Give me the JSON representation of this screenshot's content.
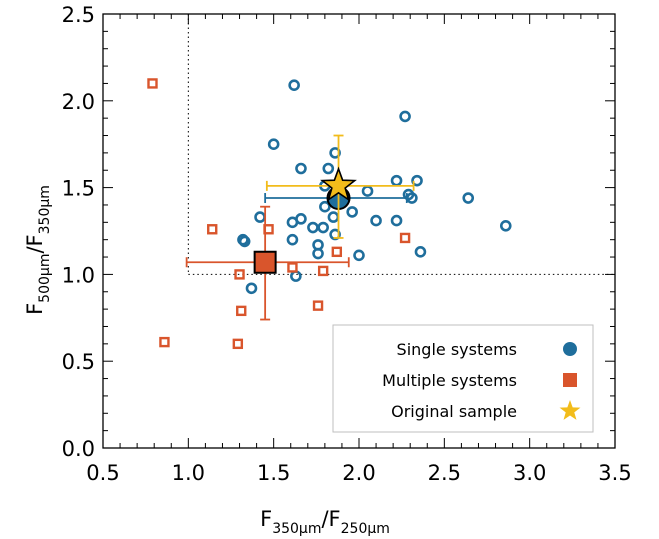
{
  "chart_data": {
    "type": "scatter",
    "xlim": [
      0.5,
      3.5
    ],
    "ylim": [
      0.0,
      2.5
    ],
    "xticks": [
      "0.5",
      "1.0",
      "1.5",
      "2.0",
      "2.5",
      "3.0",
      "3.5"
    ],
    "yticks": [
      "0.0",
      "0.5",
      "1.0",
      "1.5",
      "2.0",
      "2.5"
    ],
    "xlabel": {
      "main1": "F",
      "sub1": "350μm",
      "slash": "/F",
      "sub2": "250μm"
    },
    "ylabel": {
      "main1": "F",
      "sub1": "500μm",
      "slash": "/F",
      "sub2": "350μm"
    },
    "reference_lines": {
      "x": 1.0,
      "y": 1.0,
      "style": "dotted"
    },
    "grid": false,
    "legend_position": "bottom-right",
    "colors": {
      "single": "#1f6e9c",
      "multiple": "#d9552c",
      "original": "#f2bc1b"
    },
    "series": [
      {
        "name": "Single systems",
        "marker": "open-circle",
        "points": [
          [
            1.62,
            2.09
          ],
          [
            2.27,
            1.91
          ],
          [
            1.5,
            1.75
          ],
          [
            1.86,
            1.7
          ],
          [
            1.66,
            1.61
          ],
          [
            1.82,
            1.61
          ],
          [
            2.22,
            1.54
          ],
          [
            2.34,
            1.54
          ],
          [
            1.8,
            1.51
          ],
          [
            2.05,
            1.48
          ],
          [
            2.29,
            1.46
          ],
          [
            2.31,
            1.44
          ],
          [
            1.88,
            1.44
          ],
          [
            2.64,
            1.44
          ],
          [
            1.8,
            1.39
          ],
          [
            1.96,
            1.36
          ],
          [
            1.42,
            1.33
          ],
          [
            1.66,
            1.32
          ],
          [
            1.85,
            1.33
          ],
          [
            2.1,
            1.31
          ],
          [
            2.22,
            1.31
          ],
          [
            1.61,
            1.3
          ],
          [
            1.73,
            1.27
          ],
          [
            1.79,
            1.27
          ],
          [
            2.86,
            1.28
          ],
          [
            1.86,
            1.23
          ],
          [
            1.32,
            1.2
          ],
          [
            1.33,
            1.19
          ],
          [
            1.61,
            1.2
          ],
          [
            1.76,
            1.17
          ],
          [
            1.76,
            1.12
          ],
          [
            2.0,
            1.11
          ],
          [
            2.36,
            1.13
          ],
          [
            1.63,
            0.99
          ],
          [
            1.37,
            0.92
          ]
        ]
      },
      {
        "name": "Multiple systems",
        "marker": "open-square",
        "points": [
          [
            0.79,
            2.1
          ],
          [
            1.14,
            1.26
          ],
          [
            1.47,
            1.26
          ],
          [
            2.27,
            1.21
          ],
          [
            1.87,
            1.13
          ],
          [
            1.61,
            1.04
          ],
          [
            1.79,
            1.02
          ],
          [
            1.3,
            1.0
          ],
          [
            1.76,
            0.82
          ],
          [
            1.31,
            0.79
          ],
          [
            0.86,
            0.61
          ],
          [
            1.29,
            0.6
          ]
        ]
      }
    ],
    "summary_points": [
      {
        "name": "Single systems mean",
        "marker": "filled-circle",
        "x": 1.88,
        "y": 1.44,
        "xerr": [
          1.45,
          2.28
        ]
      },
      {
        "name": "Multiple systems mean",
        "marker": "filled-square",
        "x": 1.45,
        "y": 1.07,
        "xerr": [
          0.99,
          1.94
        ],
        "yerr": [
          0.74,
          1.39
        ]
      },
      {
        "name": "Original sample mean",
        "marker": "filled-star",
        "x": 1.88,
        "y": 1.51,
        "xerr": [
          1.46,
          2.32
        ],
        "yerr": [
          1.21,
          1.8
        ]
      }
    ],
    "legend": [
      {
        "label": "Single systems",
        "marker": "filled-circle"
      },
      {
        "label": "Multiple systems",
        "marker": "filled-square"
      },
      {
        "label": "Original sample",
        "marker": "filled-star"
      }
    ]
  }
}
